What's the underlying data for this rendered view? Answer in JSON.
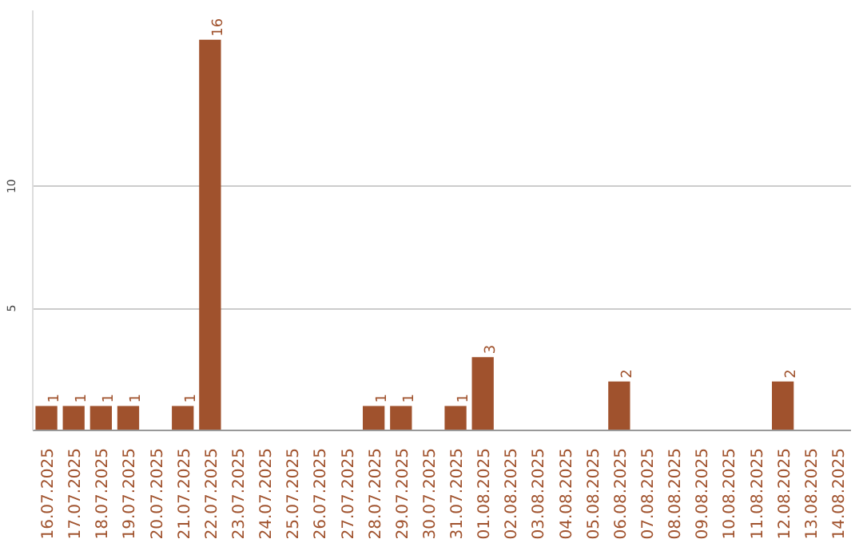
{
  "chart_data": {
    "type": "bar",
    "categories": [
      "16.07.2025",
      "17.07.2025",
      "18.07.2025",
      "19.07.2025",
      "20.07.2025",
      "21.07.2025",
      "22.07.2025",
      "23.07.2025",
      "24.07.2025",
      "25.07.2025",
      "26.07.2025",
      "27.07.2025",
      "28.07.2025",
      "29.07.2025",
      "30.07.2025",
      "31.07.2025",
      "01.08.2025",
      "02.08.2025",
      "03.08.2025",
      "04.08.2025",
      "05.08.2025",
      "06.08.2025",
      "07.08.2025",
      "08.08.2025",
      "09.08.2025",
      "10.08.2025",
      "11.08.2025",
      "12.08.2025",
      "13.08.2025",
      "14.08.2025"
    ],
    "values": [
      1,
      1,
      1,
      1,
      0,
      1,
      16,
      0,
      0,
      0,
      0,
      0,
      1,
      1,
      0,
      1,
      3,
      0,
      0,
      0,
      0,
      2,
      0,
      0,
      0,
      0,
      0,
      2,
      0,
      0
    ],
    "value_labels": [
      "1",
      "1",
      "1",
      "1",
      null,
      "1",
      "16",
      null,
      null,
      null,
      null,
      null,
      "1",
      "1",
      null,
      "1",
      "3",
      null,
      null,
      null,
      null,
      "2",
      null,
      null,
      null,
      null,
      null,
      "2",
      null,
      null
    ],
    "color": "#a0522d",
    "ylim": [
      0,
      17.2
    ],
    "yticks": [
      5,
      10
    ],
    "grid": "y"
  }
}
